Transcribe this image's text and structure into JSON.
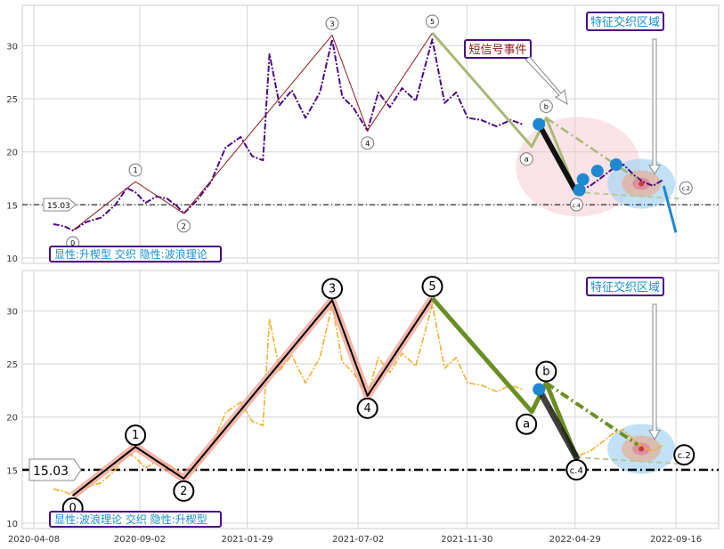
{
  "chart_data": [
    {
      "type": "line",
      "panel": "top",
      "ylim": [
        9.5,
        33.8
      ],
      "yticks": [
        10,
        15,
        20,
        25,
        30
      ],
      "grid": true,
      "hline": {
        "value": 15.03,
        "label": "15.03"
      },
      "caption": "显性:升楔型 交织 隐性:波浪理论",
      "callouts": [
        {
          "text": "特征交织区域",
          "color": "#1a8fd0"
        },
        {
          "text": "短信号事件",
          "color": "#8b1a1a"
        }
      ],
      "wave_points": [
        {
          "label": "0",
          "x": "2020-06-01",
          "y": 12.6
        },
        {
          "label": "1",
          "x": "2020-08-27",
          "y": 17.2
        },
        {
          "label": "2",
          "x": "2020-11-02",
          "y": 14.2
        },
        {
          "label": "3",
          "x": "2021-05-27",
          "y": 31.0
        },
        {
          "label": "4",
          "x": "2021-07-15",
          "y": 22.0
        },
        {
          "label": "5",
          "x": "2021-10-13",
          "y": 31.2
        },
        {
          "label": "a",
          "x": "2022-02-28",
          "y": 20.5
        },
        {
          "label": "b",
          "x": "2022-03-20",
          "y": 23.2
        },
        {
          "label": "c.4",
          "x": "2022-05-01",
          "y": 16.2
        },
        {
          "label": "c.2",
          "x": "2022-09-20",
          "y": 15.6
        }
      ],
      "series": [
        {
          "name": "",
          "x": [
            "2020-05-05",
            "2020-05-20",
            "2020-06-01",
            "2020-06-20",
            "2020-07-10",
            "2020-07-30",
            "2020-08-15",
            "2020-08-27",
            "2020-09-10",
            "2020-09-25",
            "2020-10-10",
            "2020-10-25",
            "2020-11-02",
            "2020-11-20",
            "2020-12-10",
            "2020-12-30",
            "2021-01-20",
            "2021-02-05",
            "2021-02-20",
            "2021-03-01",
            "2021-03-15",
            "2021-04-01",
            "2021-04-20",
            "2021-05-10",
            "2021-05-27",
            "2021-06-10",
            "2021-06-25",
            "2021-07-15",
            "2021-07-30",
            "2021-08-15",
            "2021-09-01",
            "2021-09-20",
            "2021-10-13",
            "2021-10-30",
            "2021-11-15",
            "2021-12-01",
            "2021-12-20",
            "2022-01-10",
            "2022-01-30",
            "2022-02-15"
          ],
          "values": [
            13.2,
            13.0,
            12.6,
            13.4,
            13.8,
            15.0,
            16.6,
            16.2,
            15.2,
            15.8,
            15.6,
            14.8,
            14.2,
            15.4,
            17.2,
            20.4,
            21.4,
            19.6,
            19.2,
            29.2,
            24.4,
            25.8,
            23.2,
            25.6,
            30.6,
            25.2,
            24.2,
            22.0,
            25.6,
            24.2,
            26.0,
            24.8,
            30.6,
            24.6,
            25.6,
            23.2,
            23.0,
            22.4,
            23.0,
            22.6
          ],
          "color": "#4b0b82"
        },
        {
          "name": "",
          "x": [
            "2022-03-25",
            "2022-04-05",
            "2022-04-15",
            "2022-04-25",
            "2022-05-05",
            "2022-05-20",
            "2022-06-05",
            "2022-06-20",
            "2022-07-05",
            "2022-07-20",
            "2022-08-01",
            "2022-08-15",
            "2022-08-30"
          ],
          "values": [
            21.0,
            19.6,
            18.2,
            17.0,
            16.4,
            16.8,
            17.6,
            18.4,
            18.8,
            17.8,
            17.2,
            16.8,
            17.4
          ],
          "color": "#4b0b82"
        }
      ]
    },
    {
      "type": "line",
      "panel": "bottom",
      "ylim": [
        9.5,
        33.8
      ],
      "yticks": [
        10,
        15,
        20,
        25,
        30
      ],
      "xticks": [
        "2020-04-08",
        "2020-09-02",
        "2021-01-29",
        "2021-07-02",
        "2021-11-30",
        "2022-04-29",
        "2022-09-16"
      ],
      "grid": true,
      "hline": {
        "value": 15.03,
        "label": "15.03"
      },
      "caption": "显性:波浪理论 交织 隐性:升楔型",
      "callouts": [
        {
          "text": "特征交织区域",
          "color": "#1a8fd0"
        }
      ],
      "wave_points": [
        {
          "label": "0",
          "x": "2020-06-01",
          "y": 12.6
        },
        {
          "label": "1",
          "x": "2020-08-27",
          "y": 17.2
        },
        {
          "label": "2",
          "x": "2020-11-02",
          "y": 14.2
        },
        {
          "label": "3",
          "x": "2021-05-27",
          "y": 31.0
        },
        {
          "label": "4",
          "x": "2021-07-15",
          "y": 22.0
        },
        {
          "label": "5",
          "x": "2021-10-13",
          "y": 31.2
        },
        {
          "label": "a",
          "x": "2022-02-28",
          "y": 20.5
        },
        {
          "label": "b",
          "x": "2022-03-20",
          "y": 23.2
        },
        {
          "label": "c.4",
          "x": "2022-05-01",
          "y": 16.2
        },
        {
          "label": "c.2",
          "x": "2022-09-20",
          "y": 15.6
        }
      ],
      "series": [
        {
          "name": "",
          "x": [
            "2020-05-05",
            "2020-05-20",
            "2020-06-01",
            "2020-06-20",
            "2020-07-10",
            "2020-07-30",
            "2020-08-15",
            "2020-08-27",
            "2020-09-10",
            "2020-09-25",
            "2020-10-10",
            "2020-10-25",
            "2020-11-02",
            "2020-11-20",
            "2020-12-10",
            "2020-12-30",
            "2021-01-20",
            "2021-02-05",
            "2021-02-20",
            "2021-03-01",
            "2021-03-15",
            "2021-04-01",
            "2021-04-20",
            "2021-05-10",
            "2021-05-27",
            "2021-06-10",
            "2021-06-25",
            "2021-07-15",
            "2021-07-30",
            "2021-08-15",
            "2021-09-01",
            "2021-09-20",
            "2021-10-13",
            "2021-10-30",
            "2021-11-15",
            "2021-12-01",
            "2021-12-20",
            "2022-01-10",
            "2022-01-30",
            "2022-02-15"
          ],
          "values": [
            13.2,
            13.0,
            12.6,
            13.4,
            13.8,
            15.0,
            16.6,
            16.2,
            15.2,
            15.8,
            15.6,
            14.8,
            14.2,
            15.4,
            17.2,
            20.4,
            21.4,
            19.6,
            19.2,
            29.2,
            24.4,
            25.8,
            23.2,
            25.6,
            30.6,
            25.2,
            24.2,
            22.0,
            25.6,
            24.2,
            26.0,
            24.8,
            30.6,
            24.6,
            25.6,
            23.2,
            23.0,
            22.4,
            23.0,
            22.6
          ],
          "color": "#f0b030"
        },
        {
          "name": "",
          "x": [
            "2022-03-25",
            "2022-04-05",
            "2022-04-15",
            "2022-04-25",
            "2022-05-05",
            "2022-05-20",
            "2022-06-05",
            "2022-06-20",
            "2022-07-05",
            "2022-07-20",
            "2022-08-01",
            "2022-08-15",
            "2022-08-30"
          ],
          "values": [
            21.0,
            19.6,
            18.2,
            17.0,
            16.4,
            16.8,
            17.6,
            18.4,
            18.8,
            17.8,
            17.2,
            16.8,
            17.4
          ],
          "color": "#f0b030"
        }
      ]
    }
  ]
}
